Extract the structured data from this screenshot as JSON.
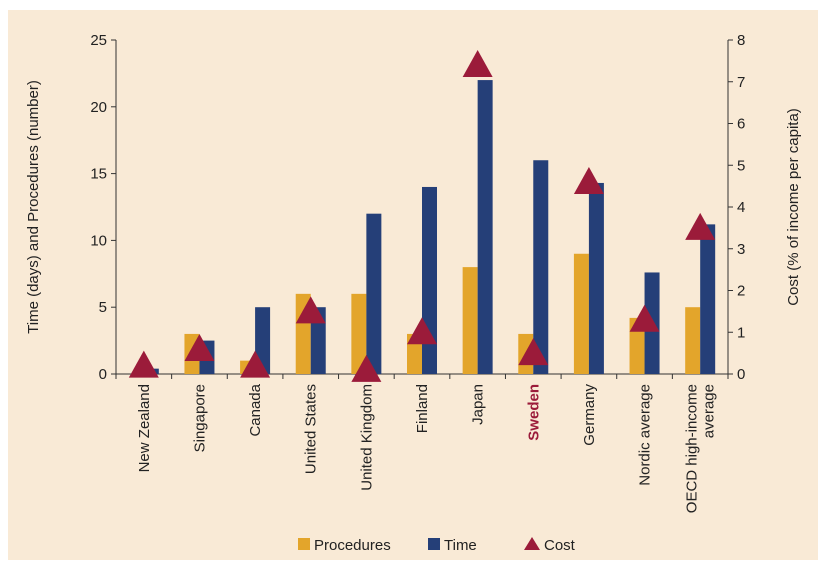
{
  "colors": {
    "procedures": "#e3a52b",
    "time": "#253f78",
    "cost": "#9b1b3a",
    "highlight": "#9b1b3a",
    "background": "#f9ead6"
  },
  "chart_data": {
    "type": "bar",
    "categories": [
      "New Zealand",
      "Singapore",
      "Canada",
      "United States",
      "United Kingdom",
      "Finland",
      "Japan",
      "Sweden",
      "Germany",
      "Nordic average",
      "OECD high-income average"
    ],
    "category_lines": [
      [
        "New Zealand"
      ],
      [
        "Singapore"
      ],
      [
        "Canada"
      ],
      [
        "United States"
      ],
      [
        "United Kingdom"
      ],
      [
        "Finland"
      ],
      [
        "Japan"
      ],
      [
        "Sweden"
      ],
      [
        "Germany"
      ],
      [
        "Nordic average"
      ],
      [
        "OECD high-income",
        "average"
      ]
    ],
    "highlight_category": "Sweden",
    "series": [
      {
        "name": "Procedures",
        "axis": "left",
        "type": "bar",
        "values": [
          0,
          3,
          1,
          6,
          6,
          3,
          8,
          3,
          9,
          4.2,
          5
        ]
      },
      {
        "name": "Time",
        "axis": "left",
        "type": "bar",
        "values": [
          0.4,
          2.5,
          5,
          5,
          12,
          14,
          22,
          16,
          14.3,
          7.6,
          11.2
        ]
      },
      {
        "name": "Cost",
        "axis": "right",
        "type": "marker",
        "values": [
          0.2,
          0.6,
          0.2,
          1.5,
          0.1,
          1.0,
          7.4,
          0.5,
          4.6,
          1.3,
          3.5
        ]
      }
    ],
    "ylabel": "Time (days) and Procedures (number)",
    "y2label": "Cost (% of income per capita)",
    "ylim": [
      0,
      25
    ],
    "y2lim": [
      0,
      8
    ],
    "yticks": [
      0,
      5,
      10,
      15,
      20,
      25
    ],
    "y2ticks": [
      0,
      1,
      2,
      3,
      4,
      5,
      6,
      7,
      8
    ],
    "legend": [
      {
        "label": "Procedures",
        "shape": "square"
      },
      {
        "label": "Time",
        "shape": "square"
      },
      {
        "label": "Cost",
        "shape": "triangle"
      }
    ],
    "legend_position": "bottom",
    "grid": false
  }
}
